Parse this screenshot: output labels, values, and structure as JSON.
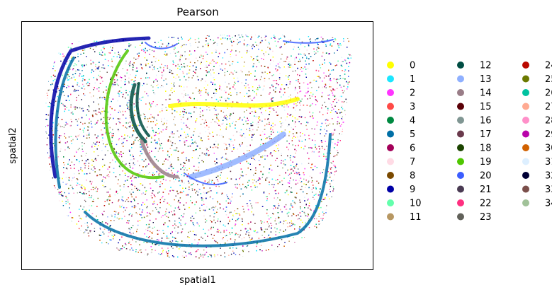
{
  "chart_data": {
    "type": "scatter",
    "title": "Pearson",
    "xlabel": "spatial1",
    "ylabel": "spatial2",
    "grid": false,
    "x_ticks": "none",
    "y_ticks": "none",
    "legend_position": "right",
    "legend_columns": 3,
    "legend": [
      {
        "label": "0",
        "color": "#ffff00"
      },
      {
        "label": "1",
        "color": "#1ce6ff"
      },
      {
        "label": "2",
        "color": "#ff34ff"
      },
      {
        "label": "3",
        "color": "#ff4a46"
      },
      {
        "label": "4",
        "color": "#008941"
      },
      {
        "label": "5",
        "color": "#006fa6"
      },
      {
        "label": "6",
        "color": "#a30059"
      },
      {
        "label": "7",
        "color": "#ffdbe5"
      },
      {
        "label": "8",
        "color": "#7a4900"
      },
      {
        "label": "9",
        "color": "#0000a6"
      },
      {
        "label": "10",
        "color": "#63ffac"
      },
      {
        "label": "11",
        "color": "#b79762"
      },
      {
        "label": "12",
        "color": "#004d43"
      },
      {
        "label": "13",
        "color": "#8fb0ff"
      },
      {
        "label": "14",
        "color": "#997d87"
      },
      {
        "label": "15",
        "color": "#5a0007"
      },
      {
        "label": "16",
        "color": "#809693"
      },
      {
        "label": "17",
        "color": "#6a3a4c"
      },
      {
        "label": "18",
        "color": "#1b4400"
      },
      {
        "label": "19",
        "color": "#4fc601"
      },
      {
        "label": "20",
        "color": "#3b5dff"
      },
      {
        "label": "21",
        "color": "#4a3b53"
      },
      {
        "label": "22",
        "color": "#ff2f80"
      },
      {
        "label": "23",
        "color": "#61615a"
      },
      {
        "label": "24",
        "color": "#ba0900"
      },
      {
        "label": "25",
        "color": "#6b7900"
      },
      {
        "label": "26",
        "color": "#00c2a0"
      },
      {
        "label": "27",
        "color": "#ffaa92"
      },
      {
        "label": "28",
        "color": "#ff90c9"
      },
      {
        "label": "29",
        "color": "#b903aa"
      },
      {
        "label": "30",
        "color": "#d16100"
      },
      {
        "label": "31",
        "color": "#ddefff"
      },
      {
        "label": "32",
        "color": "#000035"
      },
      {
        "label": "33",
        "color": "#7b4f4b"
      },
      {
        "label": "34",
        "color": "#a1c299"
      }
    ]
  }
}
